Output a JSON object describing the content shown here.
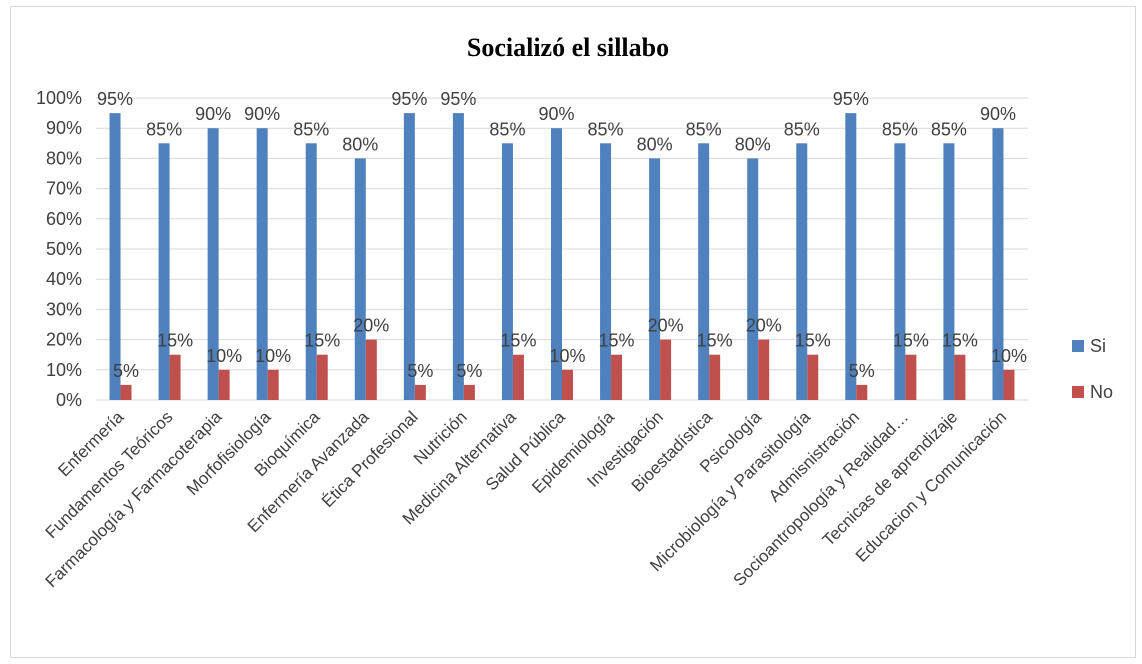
{
  "chart_data": {
    "type": "bar",
    "title": "Socializó el sillabo",
    "xlabel": "",
    "ylabel": "",
    "ylim": [
      0,
      100
    ],
    "yticks": [
      "0%",
      "10%",
      "20%",
      "30%",
      "40%",
      "50%",
      "60%",
      "70%",
      "80%",
      "90%",
      "100%"
    ],
    "grid": true,
    "legend_position": "right",
    "categories": [
      "Enfermería",
      "Fundamentos Teóricos",
      "Farmacología y Farmacoterapia",
      "Morfofisiología",
      "Bioquímica",
      "Enfermería Avanzada",
      "Ética Profesional",
      "Nutrición",
      "Medicina Alternativa",
      "Salud Pública",
      "Epidemiología",
      "Investigación",
      "Bioestadística",
      "Psicología",
      "Microbiología y Parasitología",
      "Admisnistración",
      "Socioantropología y Realidad…",
      "Tecnicas de aprendizaje",
      "Educacion y Comunicación"
    ],
    "series": [
      {
        "name": "Si",
        "color": "#4f81bd",
        "values": [
          95,
          85,
          90,
          90,
          85,
          80,
          95,
          95,
          85,
          90,
          85,
          80,
          85,
          80,
          85,
          95,
          85,
          85,
          90
        ],
        "labels": [
          "95%",
          "85%",
          "90%",
          "90%",
          "85%",
          "80%",
          "95%",
          "95%",
          "85%",
          "90%",
          "85%",
          "80%",
          "85%",
          "80%",
          "85%",
          "95%",
          "85%",
          "85%",
          "90%"
        ]
      },
      {
        "name": "No",
        "color": "#c0504d",
        "values": [
          5,
          15,
          10,
          10,
          15,
          20,
          5,
          5,
          15,
          10,
          15,
          20,
          15,
          20,
          15,
          5,
          15,
          15,
          10
        ],
        "labels": [
          "5%",
          "15%",
          "10%",
          "10%",
          "15%",
          "20%",
          "5%",
          "5%",
          "15%",
          "10%",
          "15%",
          "20%",
          "15%",
          "20%",
          "15%",
          "5%",
          "15%",
          "15%",
          "10%"
        ]
      }
    ]
  }
}
